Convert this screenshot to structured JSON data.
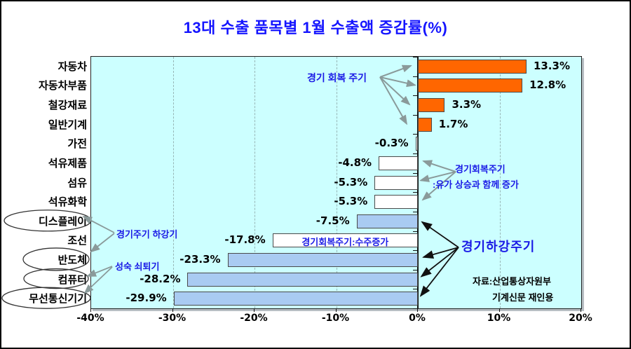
{
  "title": "13대 수출 품목별 1월 수출액 증감률(%)",
  "chart_data": {
    "type": "bar",
    "orientation": "horizontal",
    "title": "13대 수출 품목별 1월 수출액 증감률(%)",
    "categories": [
      "자동차",
      "자동차부품",
      "철강재료",
      "일반기계",
      "가전",
      "석유제품",
      "섬유",
      "석유화학",
      "디스플레이",
      "조선",
      "반도체",
      "컴퓨터",
      "무선통신기기"
    ],
    "values": [
      13.3,
      12.8,
      3.3,
      1.7,
      -0.3,
      -4.8,
      -5.3,
      -5.3,
      -7.5,
      -17.8,
      -23.3,
      -28.2,
      -29.9
    ],
    "value_labels": [
      "13.3%",
      "12.8%",
      "3.3%",
      "1.7%",
      "-0.3%",
      "-4.8%",
      "-5.3%",
      "-5.3%",
      "-7.5%",
      "-17.8%",
      "-23.3%",
      "-28.2%",
      "-29.9%"
    ],
    "bar_styles": [
      "orange",
      "orange",
      "orange",
      "orange",
      "white",
      "white",
      "white",
      "white",
      "blue",
      "white",
      "blue",
      "blue",
      "blue"
    ],
    "circled_categories": [
      "디스플레이",
      "반도체",
      "컴퓨터",
      "무선통신기기"
    ],
    "bar_notes": [
      {
        "index": 9,
        "text": "경기회복주기:수주증가"
      }
    ],
    "x_ticks": [
      -40,
      -30,
      -20,
      -10,
      0,
      10,
      20
    ],
    "x_tick_labels": [
      "-40%",
      "-30%",
      "-20%",
      "-10%",
      "0%",
      "10%",
      "20%"
    ],
    "xlim": [
      -40,
      20
    ],
    "grid": "dashed-vertical",
    "legend": "none"
  },
  "annotations": {
    "recovery_top": "경기 회복 주기",
    "recovery_mid_line1": "경기회복주기",
    "recovery_mid_line2": ":유가 상승과 함께 증가",
    "downturn": "경기하강주기",
    "cycle_down": "경기주기 하강기",
    "mature_decline": "성숙 쇠퇴기"
  },
  "source": {
    "line1": "자료:산업통상자원부",
    "line2": "기계신문 재인용"
  },
  "colors": {
    "title_blue": "#1414FF",
    "annotation_blue": "#1A1AE6",
    "plot_bg": "#CCFFFF",
    "bar_orange": "#FF6600",
    "bar_blue": "#A9CBF2",
    "bar_white": "#FFFFFF",
    "gray_arrow": "#8A9A9A",
    "black_arrow": "#111111"
  }
}
